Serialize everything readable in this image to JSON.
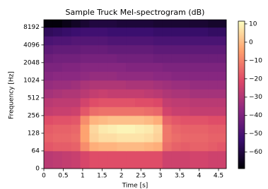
{
  "chart_data": {
    "type": "heatmap",
    "title": "Sample Truck Mel-spectrogram (dB)",
    "xlabel": "Time [s]",
    "ylabel": "Frequency [Hz]",
    "xlim": [
      0,
      4.7
    ],
    "xticks": [
      0,
      0.5,
      1,
      1.5,
      2,
      2.5,
      3,
      3.5,
      4,
      4.5
    ],
    "ylim": [
      0,
      11025
    ],
    "yscale": "symlog",
    "ylinthresh": 64,
    "yticks": [
      0,
      64,
      128,
      256,
      512,
      1024,
      2048,
      4096,
      8192
    ],
    "x_edges": [
      0,
      0.235,
      0.47,
      0.705,
      0.94,
      1.175,
      1.41,
      1.645,
      1.88,
      2.115,
      2.35,
      2.585,
      2.82,
      3.055,
      3.29,
      3.525,
      3.76,
      3.995,
      4.23,
      4.465,
      4.7
    ],
    "y_edges": [
      0,
      64,
      91,
      128,
      181,
      256,
      362,
      512,
      724,
      1024,
      1448,
      2048,
      2896,
      4096,
      5793,
      8192,
      11025
    ],
    "z": [
      [
        -28,
        -27,
        -26,
        -25,
        -22,
        -20,
        -20,
        -20,
        -20,
        -20,
        -20,
        -20,
        -20,
        -24,
        -24,
        -24,
        -23,
        -23,
        -24,
        -24
      ],
      [
        -18,
        -17,
        -17,
        -16,
        -8,
        -2,
        -1,
        -1,
        0,
        0,
        0,
        -1,
        -2,
        -14,
        -16,
        -17,
        -16,
        -16,
        -17,
        -18
      ],
      [
        -16,
        -15,
        -15,
        -14,
        -4,
        4,
        6,
        6,
        7,
        7,
        7,
        6,
        4,
        -12,
        -14,
        -15,
        -15,
        -15,
        -16,
        -16
      ],
      [
        -17,
        -16,
        -16,
        -15,
        -4,
        5,
        8,
        9,
        10,
        10,
        9,
        8,
        5,
        -12,
        -15,
        -16,
        -16,
        -16,
        -17,
        -17
      ],
      [
        -20,
        -19,
        -19,
        -18,
        -8,
        -1,
        0,
        1,
        1,
        1,
        1,
        0,
        -2,
        -16,
        -18,
        -19,
        -19,
        -19,
        -20,
        -20
      ],
      [
        -26,
        -25,
        -25,
        -24,
        -18,
        -14,
        -13,
        -13,
        -13,
        -13,
        -13,
        -14,
        -15,
        -23,
        -25,
        -25,
        -26,
        -26,
        -26,
        -26
      ],
      [
        -28,
        -27,
        -27,
        -27,
        -23,
        -20,
        -19,
        -19,
        -19,
        -19,
        -20,
        -20,
        -21,
        -26,
        -27,
        -27,
        -28,
        -28,
        -28,
        -28
      ],
      [
        -32,
        -31,
        -30,
        -30,
        -28,
        -26,
        -25,
        -26,
        -26,
        -26,
        -26,
        -27,
        -28,
        -30,
        -31,
        -31,
        -32,
        -32,
        -32,
        -32
      ],
      [
        -35,
        -34,
        -34,
        -33,
        -31,
        -30,
        -30,
        -30,
        -30,
        -31,
        -31,
        -31,
        -32,
        -33,
        -34,
        -34,
        -35,
        -35,
        -35,
        -35
      ],
      [
        -38,
        -37,
        -37,
        -37,
        -36,
        -35,
        -35,
        -35,
        -36,
        -36,
        -36,
        -36,
        -37,
        -37,
        -38,
        -38,
        -38,
        -38,
        -38,
        -38
      ],
      [
        -40,
        -40,
        -39,
        -39,
        -38,
        -38,
        -38,
        -38,
        -38,
        -39,
        -39,
        -39,
        -39,
        -40,
        -40,
        -40,
        -40,
        -40,
        -40,
        -40
      ],
      [
        -43,
        -42,
        -42,
        -42,
        -41,
        -41,
        -41,
        -41,
        -42,
        -42,
        -42,
        -42,
        -43,
        -43,
        -43,
        -43,
        -43,
        -43,
        -43,
        -43
      ],
      [
        -46,
        -45,
        -45,
        -45,
        -44,
        -44,
        -44,
        -45,
        -45,
        -45,
        -45,
        -45,
        -46,
        -46,
        -46,
        -46,
        -46,
        -46,
        -46,
        -46
      ],
      [
        -50,
        -49,
        -49,
        -48,
        -48,
        -48,
        -48,
        -49,
        -49,
        -49,
        -49,
        -49,
        -50,
        -50,
        -50,
        -50,
        -50,
        -50,
        -50,
        -50
      ],
      [
        -56,
        -55,
        -54,
        -53,
        -52,
        -52,
        -52,
        -53,
        -53,
        -53,
        -53,
        -53,
        -54,
        -54,
        -54,
        -54,
        -54,
        -54,
        -55,
        -55
      ],
      [
        -68,
        -68,
        -66,
        -64,
        -62,
        -60,
        -60,
        -60,
        -61,
        -61,
        -61,
        -61,
        -62,
        -62,
        -62,
        -62,
        -62,
        -62,
        -63,
        -63
      ]
    ],
    "clim": [
      -69,
      11.5
    ],
    "cticks": [
      {
        "value": 10,
        "label": "10"
      },
      {
        "value": 0,
        "label": "0"
      },
      {
        "value": -10,
        "label": "−10"
      },
      {
        "value": -20,
        "label": "−20"
      },
      {
        "value": -30,
        "label": "−30"
      },
      {
        "value": -40,
        "label": "−40"
      },
      {
        "value": -50,
        "label": "−50"
      },
      {
        "value": -60,
        "label": "−60"
      }
    ],
    "colormap": [
      "#000004",
      "#3b0f70",
      "#8c2981",
      "#de4968",
      "#fe9f6d",
      "#fcfdbf"
    ]
  }
}
